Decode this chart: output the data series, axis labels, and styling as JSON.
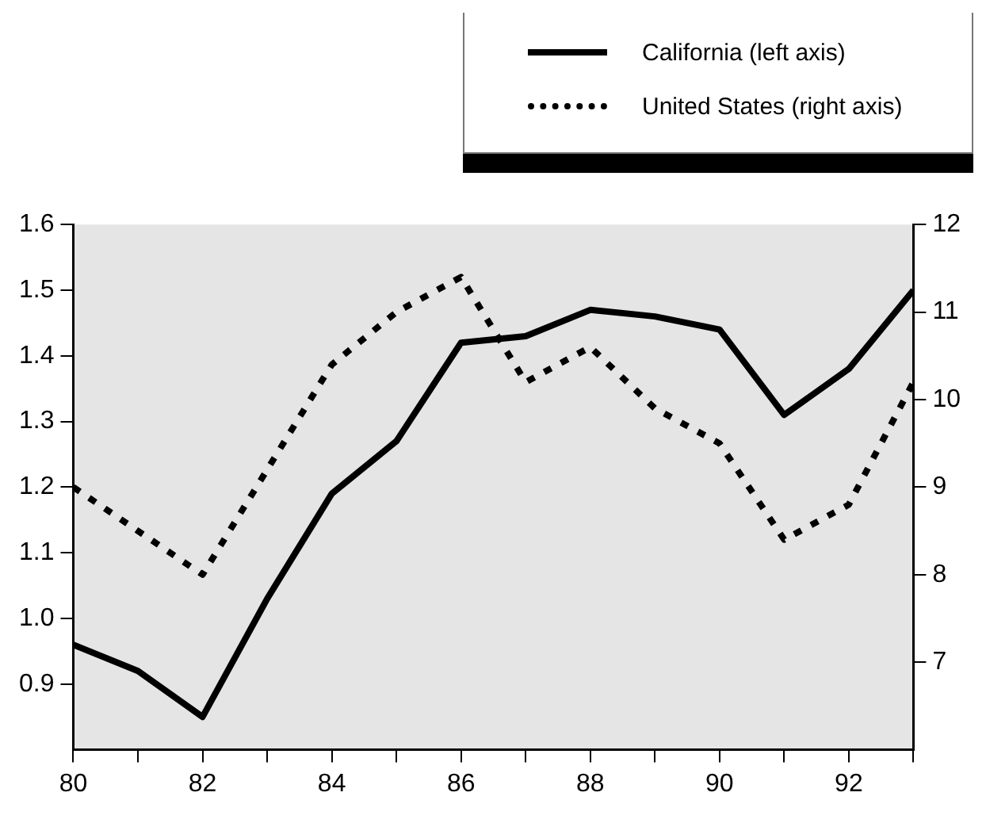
{
  "chart_data": {
    "type": "line",
    "x": [
      80,
      81,
      82,
      83,
      84,
      85,
      86,
      87,
      88,
      89,
      90,
      91,
      92,
      93
    ],
    "series": [
      {
        "name": "California (left axis)",
        "color": "#000000",
        "line_style": "solid",
        "values": [
          0.96,
          0.92,
          0.85,
          1.03,
          1.19,
          1.27,
          1.42,
          1.43,
          1.47,
          1.46,
          1.44,
          1.31,
          1.38,
          1.5
        ]
      },
      {
        "name": "United States (right axis)",
        "color": "#000000",
        "line_style": "dotted",
        "axis": "y2",
        "values": [
          9.0,
          8.5,
          8.0,
          9.2,
          10.4,
          11.0,
          11.4,
          10.2,
          10.6,
          9.9,
          9.5,
          8.4,
          8.8,
          10.2
        ]
      }
    ],
    "xlim": [
      80,
      93
    ],
    "xticks": [
      80,
      {
        "value": 81,
        "label": null
      },
      82,
      {
        "value": 83,
        "label": null
      },
      84,
      {
        "value": 85,
        "label": null
      },
      86,
      {
        "value": 87,
        "label": null
      },
      88,
      {
        "value": 89,
        "label": null
      },
      90,
      {
        "value": 91,
        "label": null
      },
      92,
      {
        "value": 93,
        "label": null
      }
    ],
    "ylim": [
      0.8,
      1.6
    ],
    "yticks": [
      {
        "value": 0.9,
        "label": "0.9"
      },
      {
        "value": 1.0,
        "label": "1.0"
      },
      {
        "value": 1.1,
        "label": "1.1"
      },
      {
        "value": 1.2,
        "label": "1.2"
      },
      {
        "value": 1.3,
        "label": "1.3"
      },
      {
        "value": 1.4,
        "label": "1.4"
      },
      {
        "value": 1.5,
        "label": "1.5"
      },
      {
        "value": 1.6,
        "label": "1.6"
      }
    ],
    "y2lim": [
      6,
      12
    ],
    "y2ticks": [
      7,
      8,
      9,
      10,
      11,
      12
    ],
    "grid": false,
    "legend": "top right",
    "marker": "none"
  }
}
